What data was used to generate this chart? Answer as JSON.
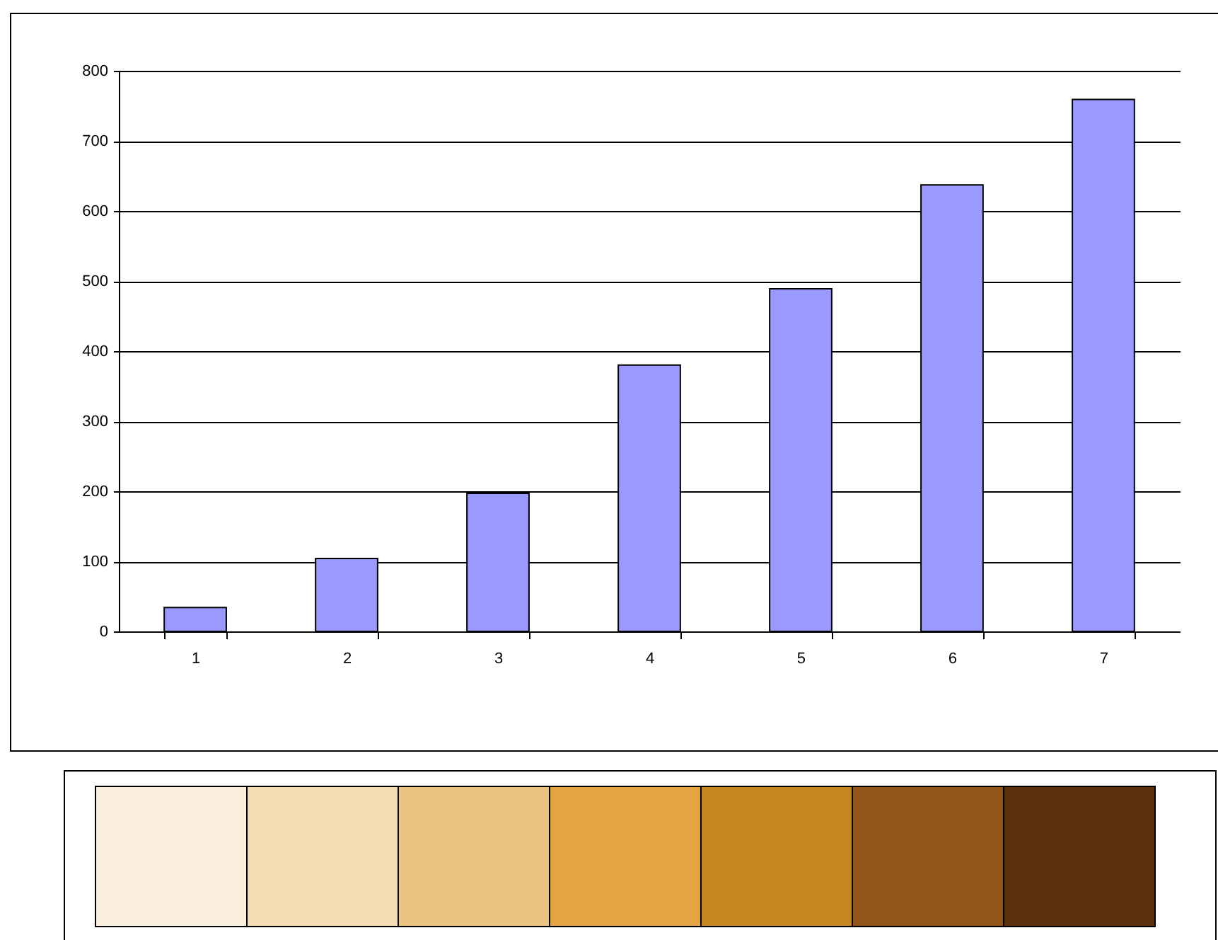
{
  "chart_data": {
    "type": "bar",
    "categories": [
      "1",
      "2",
      "3",
      "4",
      "5",
      "6",
      "7"
    ],
    "values": [
      34,
      104,
      197,
      380,
      489,
      637,
      759
    ],
    "color": "#9999ff",
    "ylim": [
      0,
      800
    ],
    "yticks": [
      0,
      100,
      200,
      300,
      400,
      500,
      600,
      700,
      800
    ],
    "grid": "y"
  }
}
